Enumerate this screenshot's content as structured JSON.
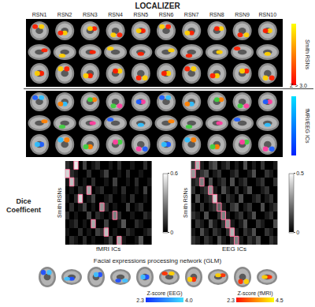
{
  "title": "LOCALIZER",
  "columns": [
    "RSN1",
    "RSN2",
    "RSN3",
    "RSN4",
    "RSN5",
    "RSN6",
    "RSN7",
    "RSN8",
    "RSN9",
    "RSN10"
  ],
  "threshold": "Z > 3.0",
  "panel_colorbars": [
    {
      "label": "Smith RSNs",
      "colors": [
        "#ffff00",
        "#ff0000"
      ]
    },
    {
      "label": "fMRI/EEG ICs",
      "colors": [
        "#00e0ff",
        "#0020ff"
      ]
    }
  ],
  "dice_label": "Dice Coefficent",
  "chart_data": [
    {
      "type": "heatmap",
      "x_label": "fMRI ICs",
      "y_label": "Smith RSNs",
      "tick_labels": false,
      "color_range": [
        0,
        0.6
      ],
      "color_ticks": [
        0,
        0.6
      ],
      "z": [
        [
          0.1,
          0.05,
          0.55,
          0,
          0.15,
          0,
          0.05,
          0.1,
          0,
          0,
          0.05,
          0,
          0.1,
          0,
          0,
          0.05,
          0,
          0,
          0.1,
          0
        ],
        [
          0.5,
          0.1,
          0.05,
          0,
          0,
          0.1,
          0,
          0,
          0.05,
          0.15,
          0,
          0,
          0.05,
          0,
          0.1,
          0,
          0,
          0.05,
          0,
          0
        ],
        [
          0.05,
          0.45,
          0.1,
          0,
          0.05,
          0,
          0.1,
          0,
          0,
          0.05,
          0,
          0.15,
          0,
          0,
          0.05,
          0,
          0.1,
          0,
          0,
          0.05
        ],
        [
          0,
          0.05,
          0,
          0.1,
          0.05,
          0.4,
          0,
          0.05,
          0.1,
          0,
          0,
          0.05,
          0,
          0.1,
          0,
          0,
          0.05,
          0,
          0.15,
          0
        ],
        [
          0.05,
          0,
          0.1,
          0.5,
          0,
          0.05,
          0.15,
          0,
          0,
          0.05,
          0.1,
          0,
          0,
          0.05,
          0,
          0.1,
          0,
          0,
          0.05,
          0
        ],
        [
          0,
          0.1,
          0,
          0.05,
          0.15,
          0,
          0.05,
          0,
          0.35,
          0.1,
          0,
          0.05,
          0,
          0,
          0.15,
          0,
          0.05,
          0.1,
          0,
          0
        ],
        [
          0.1,
          0,
          0.05,
          0,
          0,
          0.15,
          0,
          0.1,
          0.05,
          0,
          0.05,
          0.3,
          0.1,
          0,
          0,
          0.05,
          0,
          0,
          0.1,
          0.05
        ],
        [
          0,
          0.05,
          0.1,
          0,
          0.05,
          0,
          0.4,
          0,
          0,
          0.15,
          0,
          0,
          0.05,
          0.2,
          0,
          0,
          0.1,
          0.05,
          0,
          0
        ],
        [
          0.05,
          0,
          0,
          0.1,
          0,
          0.05,
          0,
          0.15,
          0.1,
          0.45,
          0,
          0.05,
          0,
          0,
          0.1,
          0.05,
          0,
          0,
          0.05,
          0.1
        ],
        [
          0,
          0.1,
          0.05,
          0,
          0.1,
          0,
          0.05,
          0,
          0,
          0.05,
          0.15,
          0,
          0.4,
          0.05,
          0,
          0,
          0.05,
          0.2,
          0,
          0
        ]
      ]
    },
    {
      "type": "heatmap",
      "x_label": "EEG ICs",
      "y_label": "Smith RSNs",
      "tick_labels": false,
      "color_range": [
        0,
        0.5
      ],
      "color_ticks": [
        0,
        0.5
      ],
      "z": [
        [
          0.1,
          0.35,
          0.05,
          0,
          0.1,
          0.15,
          0,
          0.05,
          0.1,
          0,
          0.05,
          0,
          0.15,
          0,
          0.05,
          0,
          0.1,
          0,
          0,
          0.05
        ],
        [
          0.3,
          0.05,
          0.1,
          0.15,
          0,
          0.05,
          0.1,
          0,
          0,
          0.05,
          0.1,
          0,
          0,
          0.05,
          0.15,
          0,
          0,
          0.1,
          0.05,
          0
        ],
        [
          0.05,
          0.1,
          0.25,
          0,
          0.15,
          0,
          0.05,
          0.1,
          0,
          0.15,
          0,
          0.05,
          0.1,
          0,
          0,
          0.05,
          0.1,
          0,
          0,
          0.1
        ],
        [
          0.1,
          0,
          0.05,
          0.1,
          0.3,
          0.05,
          0,
          0.15,
          0.05,
          0,
          0.1,
          0,
          0.05,
          0.15,
          0,
          0,
          0.05,
          0.1,
          0,
          0
        ],
        [
          0,
          0.15,
          0,
          0.05,
          0.1,
          0.4,
          0.05,
          0,
          0.1,
          0.05,
          0,
          0.15,
          0,
          0,
          0.05,
          0.1,
          0,
          0.05,
          0.1,
          0
        ],
        [
          0.05,
          0,
          0.1,
          0,
          0.05,
          0.1,
          0.2,
          0.05,
          0,
          0.1,
          0.15,
          0,
          0.05,
          0.1,
          0,
          0,
          0.15,
          0,
          0.05,
          0.1
        ],
        [
          0.1,
          0.05,
          0,
          0.15,
          0,
          0,
          0.1,
          0.25,
          0.05,
          0,
          0.05,
          0.1,
          0,
          0.05,
          0.15,
          0,
          0,
          0.05,
          0.1,
          0
        ],
        [
          0,
          0.1,
          0.05,
          0,
          0.15,
          0.05,
          0,
          0.1,
          0.3,
          0.05,
          0,
          0.05,
          0.15,
          0,
          0,
          0.1,
          0.05,
          0,
          0,
          0.15
        ],
        [
          0.05,
          0,
          0.15,
          0.05,
          0,
          0.1,
          0.05,
          0,
          0.1,
          0.35,
          0.05,
          0,
          0.1,
          0.05,
          0.15,
          0,
          0,
          0.1,
          0.05,
          0
        ],
        [
          0.1,
          0.05,
          0,
          0.1,
          0.05,
          0,
          0.15,
          0.05,
          0,
          0.1,
          0.25,
          0.05,
          0,
          0.1,
          0.05,
          0.15,
          0,
          0,
          0.1,
          0.05
        ]
      ]
    }
  ],
  "glm": {
    "title": "Facial expressions processing network (GLM)",
    "colorbars": [
      {
        "label": "Z-score (EEG)",
        "colors": [
          "#1030ff",
          "#40e0ff"
        ],
        "range": [
          2.3,
          4.0
        ],
        "ticks": [
          {
            "value": 2.3,
            "label": "2.3"
          },
          {
            "value": 4.0,
            "label": "4.0"
          }
        ]
      },
      {
        "label": "Z-score (fMRI)",
        "colors": [
          "#ff1000",
          "#ffff00"
        ],
        "range": [
          2.3,
          4.5
        ],
        "ticks": [
          {
            "value": 2.3,
            "label": "2.3"
          },
          {
            "value": 4.5,
            "label": "4.5"
          }
        ]
      }
    ]
  }
}
